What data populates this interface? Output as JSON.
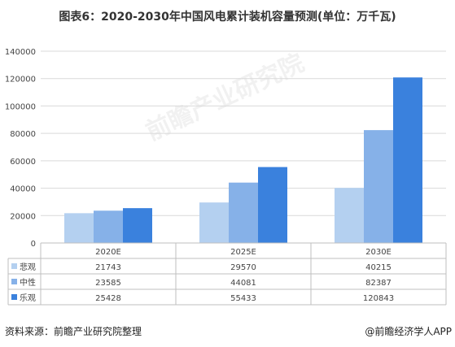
{
  "title": "图表6：2020-2030年中国风电累计装机容量预测(单位：万千瓦)",
  "source": "资料来源：前瞻产业研究院整理",
  "brand": "@前瞻经济学人APP",
  "watermark": "前瞻产业研究院",
  "colors": {
    "series": [
      "#b4d0f0",
      "#86b1e8",
      "#3a81dd"
    ],
    "grid": "#d9d9d9",
    "table_border": "#bfbfbf"
  },
  "chart_data": {
    "type": "bar",
    "title": "图表6：2020-2030年中国风电累计装机容量预测(单位：万千瓦)",
    "categories": [
      "2020E",
      "2025E",
      "2030E"
    ],
    "series": [
      {
        "name": "悲观",
        "values": [
          21743,
          29570,
          40215
        ]
      },
      {
        "name": "中性",
        "values": [
          23585,
          44081,
          82387
        ]
      },
      {
        "name": "乐观",
        "values": [
          25428,
          55433,
          120843
        ]
      }
    ],
    "ylim": [
      0,
      140000
    ],
    "yticks": [
      0,
      20000,
      40000,
      60000,
      80000,
      100000,
      120000,
      140000
    ],
    "grid": true,
    "legend": "data-table"
  }
}
